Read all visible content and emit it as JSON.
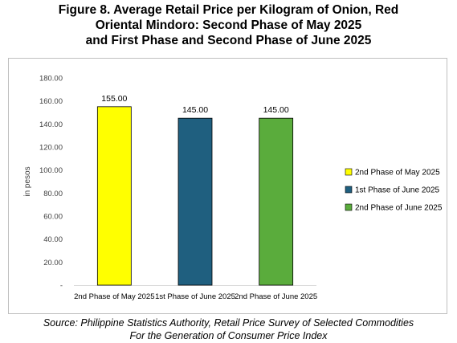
{
  "title_lines": [
    "Figure 8. Average Retail Price per Kilogram of Onion, Red",
    "Oriental Mindoro: Second Phase of May 2025",
    "and First Phase and Second Phase of June 2025"
  ],
  "source_lines": [
    "Source: Philippine Statistics Authority, Retail Price Survey of Selected Commodities",
    "For the Generation of Consumer Price Index"
  ],
  "chart_data": {
    "type": "bar",
    "categories": [
      "2nd Phase of May 2025",
      "1st Phase of June 2025",
      "2nd Phase of June 2025"
    ],
    "values": [
      155.0,
      145.0,
      145.0
    ],
    "data_labels": [
      "155.00",
      "145.00",
      "145.00"
    ],
    "colors": [
      "#ffff00",
      "#1f5f7f",
      "#5aac3c"
    ],
    "ylabel": "in pesos",
    "ylim": [
      0,
      180
    ],
    "yticks": [
      0,
      20,
      40,
      60,
      80,
      100,
      120,
      140,
      160,
      180
    ],
    "ytick_labels": [
      "-",
      "20.00",
      "40.00",
      "60.00",
      "80.00",
      "100.00",
      "120.00",
      "140.00",
      "160.00",
      "180.00"
    ],
    "legend": [
      "2nd Phase of May 2025",
      "1st Phase of June 2025",
      "2nd Phase of June 2025"
    ],
    "legend_position": "right",
    "grid": false
  }
}
